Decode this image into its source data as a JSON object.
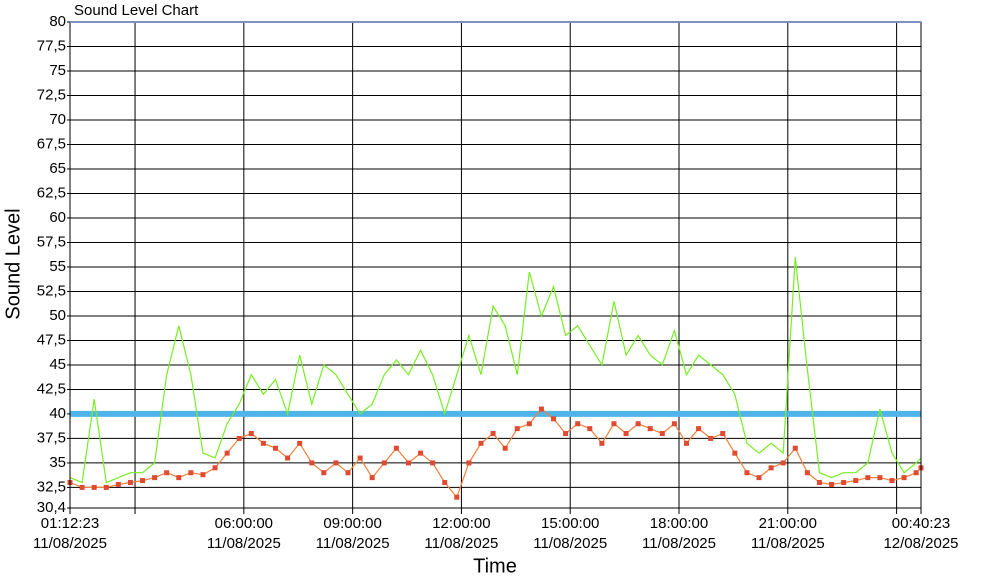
{
  "chart_data": {
    "type": "line",
    "title": "Sound Level Chart",
    "y_label": "Sound Level",
    "x_label": "Time",
    "xlim": [
      "2025-08-11T01:12:23",
      "2025-08-12T00:40:23"
    ],
    "xticks": [
      {
        "value": "2025-08-11T01:12:23",
        "label": [
          "01:12:23",
          "11/08/2025"
        ]
      },
      {
        "value": "2025-08-11T03:00:00",
        "label": null
      },
      {
        "value": "2025-08-11T06:00:00",
        "label": [
          "06:00:00",
          "11/08/2025"
        ]
      },
      {
        "value": "2025-08-11T09:00:00",
        "label": [
          "09:00:00",
          "11/08/2025"
        ]
      },
      {
        "value": "2025-08-11T12:00:00",
        "label": [
          "12:00:00",
          "11/08/2025"
        ]
      },
      {
        "value": "2025-08-11T15:00:00",
        "label": [
          "15:00:00",
          "11/08/2025"
        ]
      },
      {
        "value": "2025-08-11T18:00:00",
        "label": [
          "18:00:00",
          "11/08/2025"
        ]
      },
      {
        "value": "2025-08-11T21:00:00",
        "label": [
          "21:00:00",
          "11/08/2025"
        ]
      },
      {
        "value": "2025-08-12T00:00:00",
        "label": null
      },
      {
        "value": "2025-08-12T00:40:23",
        "label": [
          "00:40:23",
          "12/08/2025"
        ]
      }
    ],
    "ylim": [
      30.4,
      80
    ],
    "yticks": [
      {
        "value": 30.4,
        "label": "30,4"
      },
      {
        "value": 32.5,
        "label": "32,5"
      },
      35,
      {
        "value": 37.5,
        "label": "37,5"
      },
      40,
      {
        "value": 42.5,
        "label": "42,5"
      },
      45,
      {
        "value": 47.5,
        "label": "47,5"
      },
      50,
      {
        "value": 52.5,
        "label": "52,5"
      },
      55,
      {
        "value": 57.5,
        "label": "57,5"
      },
      60,
      {
        "value": 62.5,
        "label": "62,5"
      },
      65,
      {
        "value": 67.5,
        "label": "67,5"
      },
      70,
      {
        "value": 72.5,
        "label": "72,5"
      },
      75,
      {
        "value": 77.5,
        "label": "77,5"
      },
      80
    ],
    "grid": true,
    "reference_line": {
      "value": 40,
      "color": "#4fb4e8"
    },
    "x": [
      "2025-08-11T01:12:23",
      "2025-08-11T01:32:23",
      "2025-08-11T01:52:23",
      "2025-08-11T02:12:23",
      "2025-08-11T02:32:23",
      "2025-08-11T02:52:23",
      "2025-08-11T03:12:23",
      "2025-08-11T03:32:23",
      "2025-08-11T03:52:23",
      "2025-08-11T04:12:23",
      "2025-08-11T04:32:23",
      "2025-08-11T04:52:23",
      "2025-08-11T05:12:23",
      "2025-08-11T05:32:23",
      "2025-08-11T05:52:23",
      "2025-08-11T06:12:23",
      "2025-08-11T06:32:23",
      "2025-08-11T06:52:23",
      "2025-08-11T07:12:23",
      "2025-08-11T07:32:23",
      "2025-08-11T07:52:23",
      "2025-08-11T08:12:23",
      "2025-08-11T08:32:23",
      "2025-08-11T08:52:23",
      "2025-08-11T09:12:23",
      "2025-08-11T09:32:23",
      "2025-08-11T09:52:23",
      "2025-08-11T10:12:23",
      "2025-08-11T10:32:23",
      "2025-08-11T10:52:23",
      "2025-08-11T11:12:23",
      "2025-08-11T11:32:23",
      "2025-08-11T11:52:23",
      "2025-08-11T12:12:23",
      "2025-08-11T12:32:23",
      "2025-08-11T12:52:23",
      "2025-08-11T13:12:23",
      "2025-08-11T13:32:23",
      "2025-08-11T13:52:23",
      "2025-08-11T14:12:23",
      "2025-08-11T14:32:23",
      "2025-08-11T14:52:23",
      "2025-08-11T15:12:23",
      "2025-08-11T15:32:23",
      "2025-08-11T15:52:23",
      "2025-08-11T16:12:23",
      "2025-08-11T16:32:23",
      "2025-08-11T16:52:23",
      "2025-08-11T17:12:23",
      "2025-08-11T17:32:23",
      "2025-08-11T17:52:23",
      "2025-08-11T18:12:23",
      "2025-08-11T18:32:23",
      "2025-08-11T18:52:23",
      "2025-08-11T19:12:23",
      "2025-08-11T19:32:23",
      "2025-08-11T19:52:23",
      "2025-08-11T20:12:23",
      "2025-08-11T20:32:23",
      "2025-08-11T20:52:23",
      "2025-08-11T21:12:23",
      "2025-08-11T21:32:23",
      "2025-08-11T21:52:23",
      "2025-08-11T22:12:23",
      "2025-08-11T22:32:23",
      "2025-08-11T22:52:23",
      "2025-08-11T23:12:23",
      "2025-08-11T23:32:23",
      "2025-08-11T23:52:23",
      "2025-08-12T00:12:23",
      "2025-08-12T00:32:23",
      "2025-08-12T00:40:23"
    ],
    "series": [
      {
        "color": "#77ee22",
        "markers": false,
        "values": [
          33.5,
          33,
          41.5,
          33,
          33.5,
          34,
          34,
          35,
          44,
          49,
          44,
          36,
          35.5,
          39,
          41,
          44,
          42,
          43.5,
          40,
          46,
          41,
          45,
          44,
          42,
          40,
          41,
          44,
          45.5,
          44,
          46.5,
          44,
          40,
          44,
          48,
          44,
          51,
          49,
          44,
          54.5,
          50,
          53,
          48,
          49,
          47,
          45,
          51.5,
          46,
          48,
          46,
          45,
          48.5,
          44,
          46,
          45,
          44,
          42,
          37,
          36,
          37,
          36,
          56,
          44.5,
          34,
          33.5,
          34,
          34,
          35,
          40.5,
          36,
          34,
          35,
          35.5
        ]
      },
      {
        "color": "#f0803a",
        "marker_color": "#e04a30",
        "markers": true,
        "values": [
          33,
          32.5,
          32.5,
          32.5,
          32.8,
          33,
          33.2,
          33.5,
          34,
          33.5,
          34,
          33.8,
          34.5,
          36,
          37.5,
          38,
          37,
          36.5,
          35.5,
          37,
          35,
          34,
          35,
          34,
          35.5,
          33.5,
          35,
          36.5,
          35,
          36,
          35,
          33,
          31.5,
          35,
          37,
          38,
          36.5,
          38.5,
          39,
          40.5,
          39.5,
          38,
          39,
          38.5,
          37,
          39,
          38,
          39,
          38.5,
          38,
          39,
          37,
          38.5,
          37.5,
          38,
          36,
          34,
          33.5,
          34.5,
          35,
          36.5,
          34,
          33,
          32.8,
          33,
          33.2,
          33.5,
          33.5,
          33.2,
          33.5,
          34,
          34.5
        ]
      }
    ]
  }
}
